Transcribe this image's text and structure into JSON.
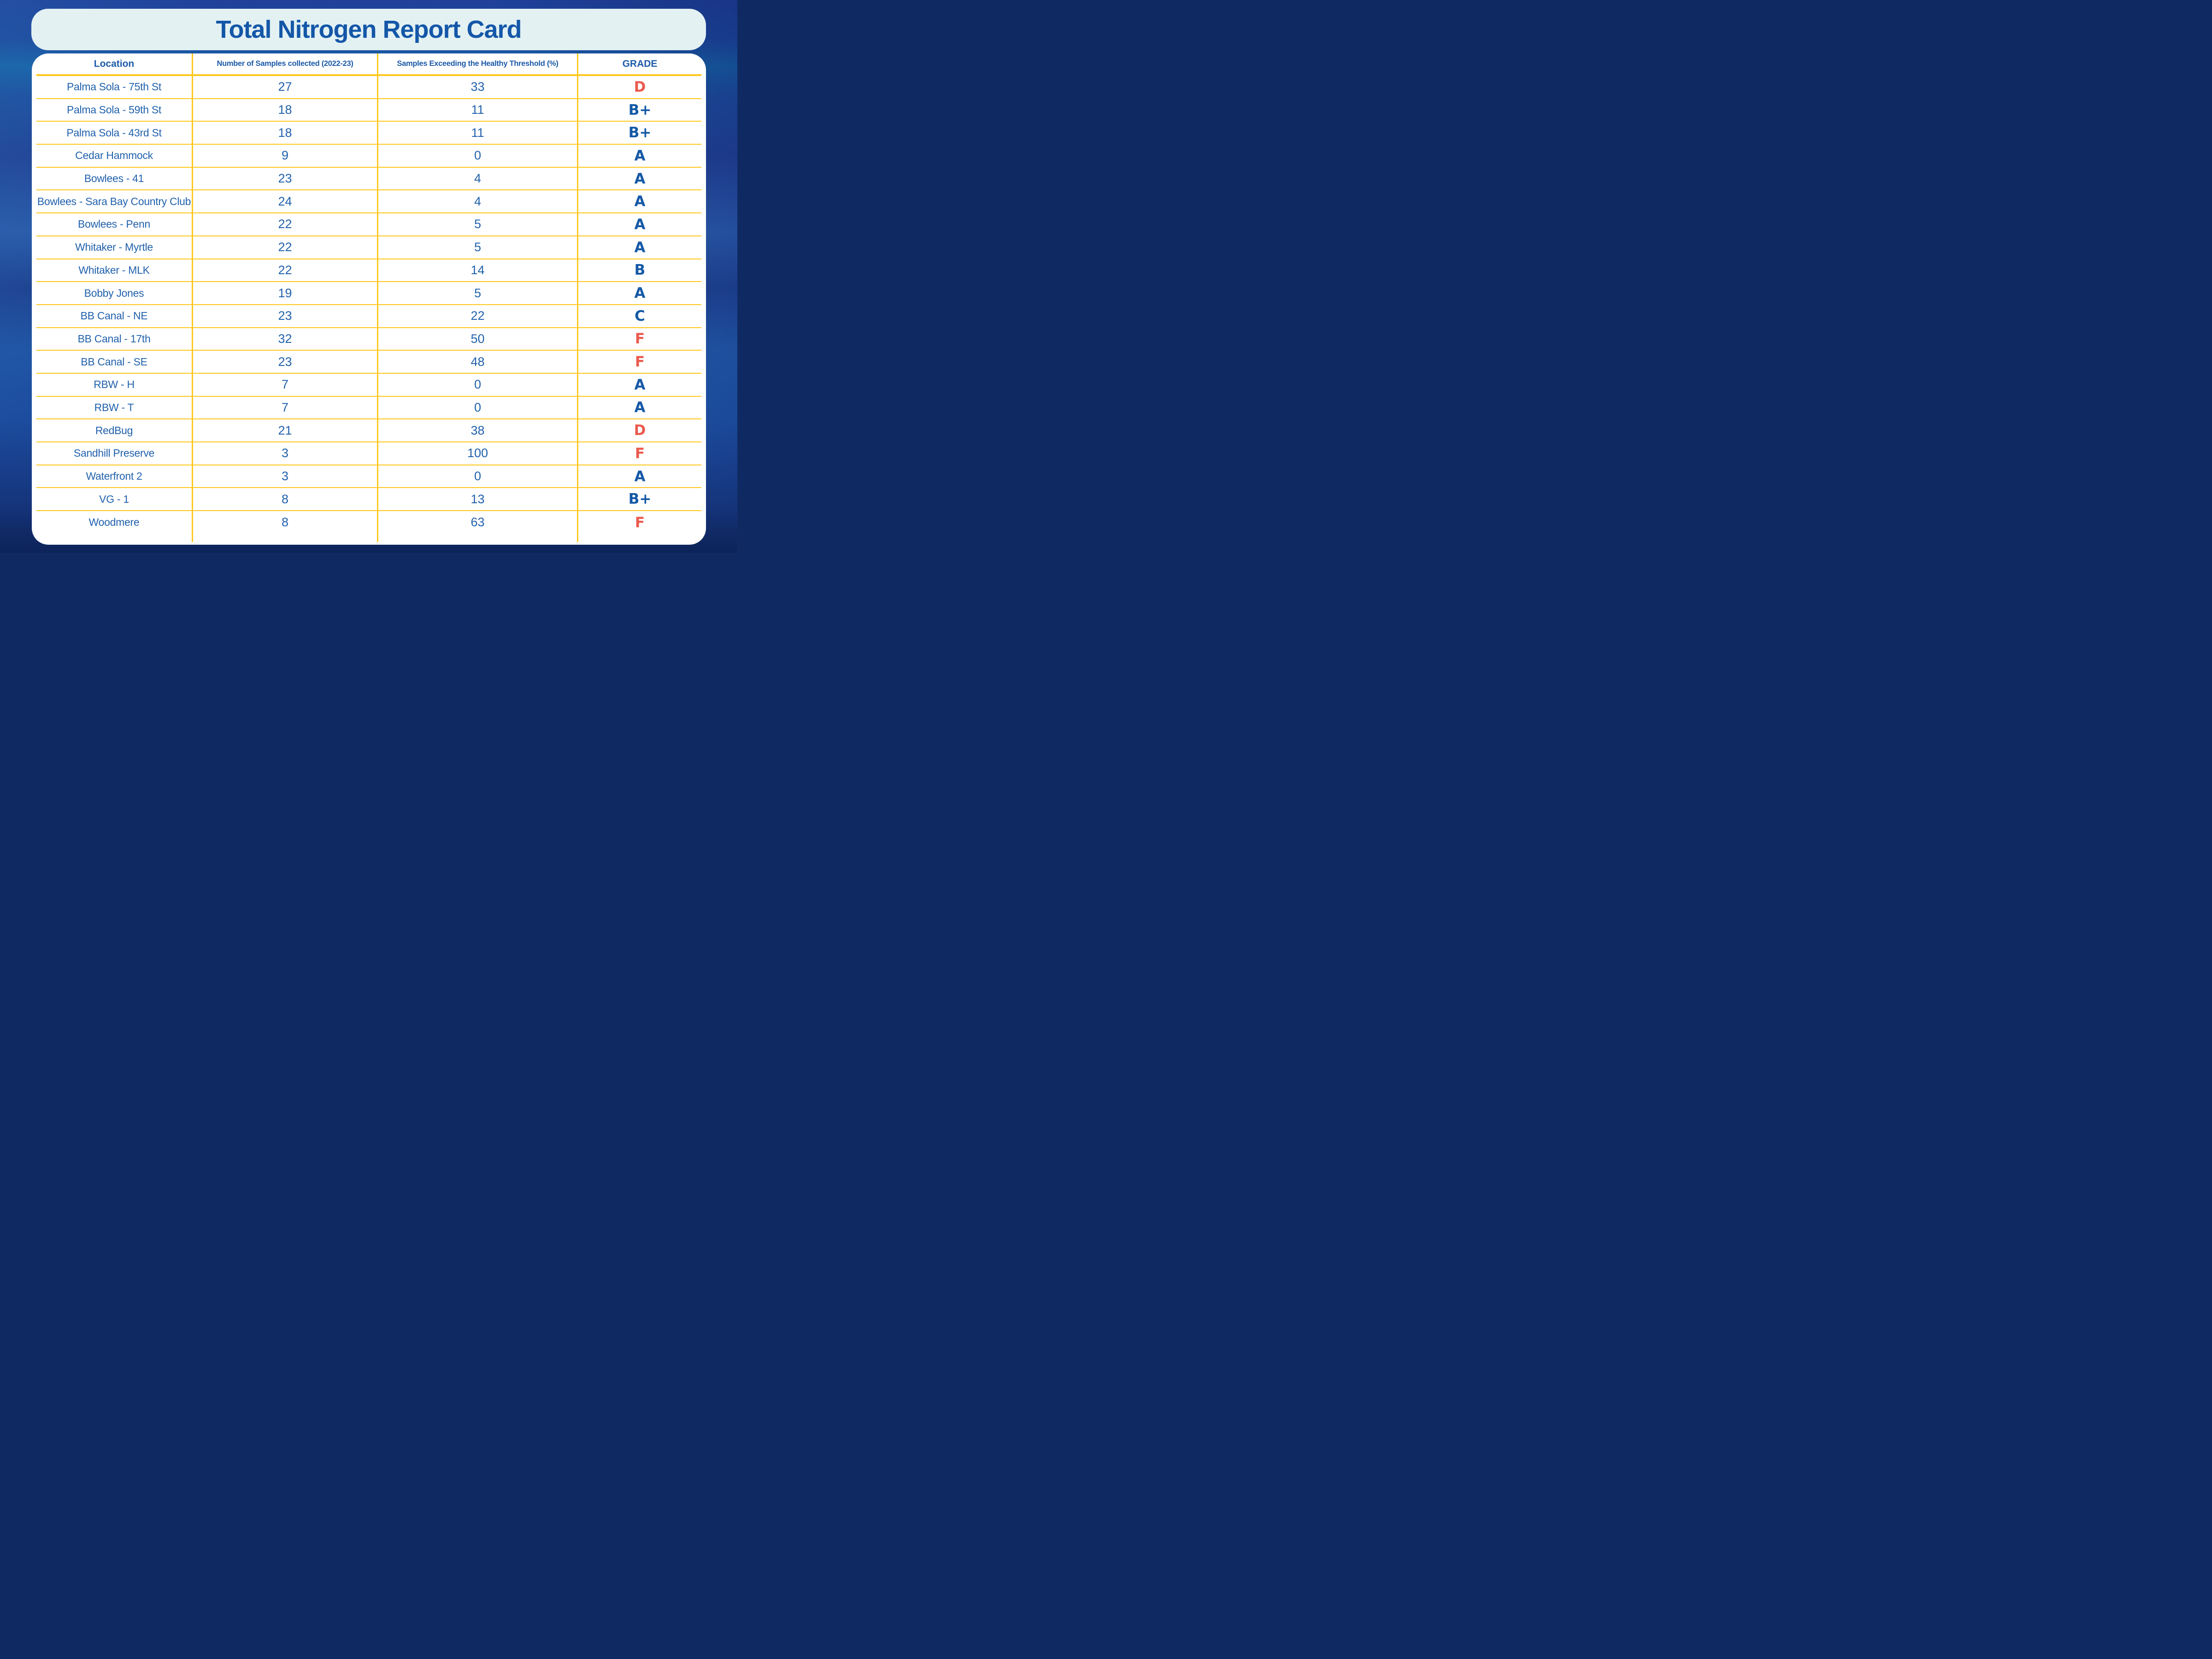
{
  "title": "Total Nitrogen Report Card",
  "table": {
    "columns": [
      "Location",
      "Number of Samples collected (2022-23)",
      "Samples Exceeding the Healthy Threshold (%)",
      "GRADE"
    ],
    "rows": [
      {
        "location": "Palma Sola - 75th St",
        "samples": "27",
        "exceeding": "33",
        "grade": "D",
        "grade_color": "red"
      },
      {
        "location": "Palma Sola - 59th St",
        "samples": "18",
        "exceeding": "11",
        "grade": "B+",
        "grade_color": "blue"
      },
      {
        "location": "Palma Sola - 43rd St",
        "samples": "18",
        "exceeding": "11",
        "grade": "B+",
        "grade_color": "blue"
      },
      {
        "location": "Cedar Hammock",
        "samples": "9",
        "exceeding": "0",
        "grade": "A",
        "grade_color": "blue"
      },
      {
        "location": "Bowlees - 41",
        "samples": "23",
        "exceeding": "4",
        "grade": "A",
        "grade_color": "blue"
      },
      {
        "location": "Bowlees - Sara Bay Country Club",
        "samples": "24",
        "exceeding": "4",
        "grade": "A",
        "grade_color": "blue"
      },
      {
        "location": "Bowlees - Penn",
        "samples": "22",
        "exceeding": "5",
        "grade": "A",
        "grade_color": "blue"
      },
      {
        "location": "Whitaker - Myrtle",
        "samples": "22",
        "exceeding": "5",
        "grade": "A",
        "grade_color": "blue"
      },
      {
        "location": "Whitaker - MLK",
        "samples": "22",
        "exceeding": "14",
        "grade": "B",
        "grade_color": "blue"
      },
      {
        "location": "Bobby Jones",
        "samples": "19",
        "exceeding": "5",
        "grade": "A",
        "grade_color": "blue"
      },
      {
        "location": "BB Canal - NE",
        "samples": "23",
        "exceeding": "22",
        "grade": "C",
        "grade_color": "blue"
      },
      {
        "location": "BB Canal - 17th",
        "samples": "32",
        "exceeding": "50",
        "grade": "F",
        "grade_color": "red"
      },
      {
        "location": "BB Canal - SE",
        "samples": "23",
        "exceeding": "48",
        "grade": "F",
        "grade_color": "red"
      },
      {
        "location": "RBW - H",
        "samples": "7",
        "exceeding": "0",
        "grade": "A",
        "grade_color": "blue"
      },
      {
        "location": "RBW - T",
        "samples": "7",
        "exceeding": "0",
        "grade": "A",
        "grade_color": "blue"
      },
      {
        "location": "RedBug",
        "samples": "21",
        "exceeding": "38",
        "grade": "D",
        "grade_color": "red"
      },
      {
        "location": "Sandhill Preserve",
        "samples": "3",
        "exceeding": "100",
        "grade": "F",
        "grade_color": "red"
      },
      {
        "location": "Waterfront 2",
        "samples": "3",
        "exceeding": "0",
        "grade": "A",
        "grade_color": "blue"
      },
      {
        "location": "VG - 1",
        "samples": "8",
        "exceeding": "13",
        "grade": "B+",
        "grade_color": "blue"
      },
      {
        "location": "Woodmere",
        "samples": "8",
        "exceeding": "63",
        "grade": "F",
        "grade_color": "red"
      }
    ]
  },
  "colors": {
    "title_text": "#1457a8",
    "title_box_bg": "#e3f1f3",
    "card_bg": "#ffffff",
    "table_line_yellow": "#ffc81e",
    "body_text_blue": "#2161ac",
    "grade_blue": "#1559a6",
    "grade_red": "#ea5a4e",
    "background_blue": "#1c4a9e"
  }
}
